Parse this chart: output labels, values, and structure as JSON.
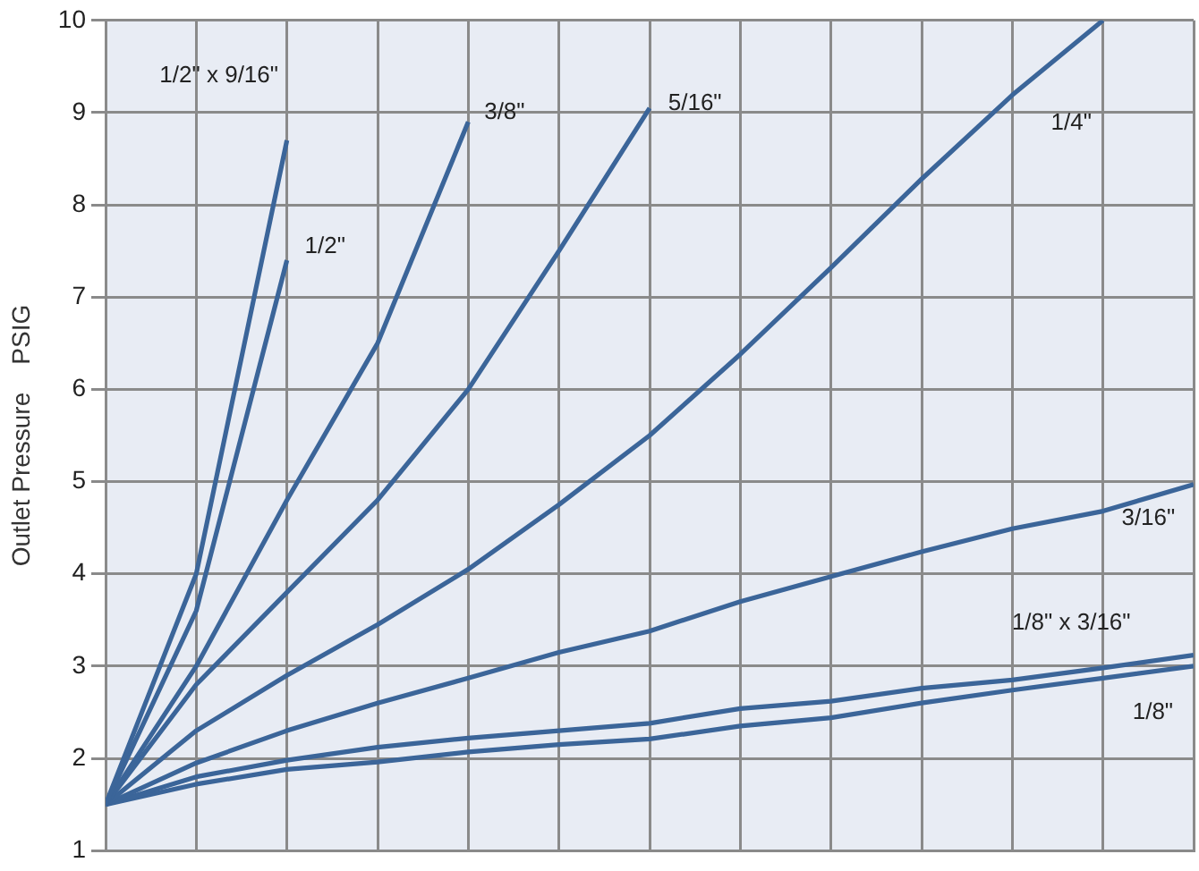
{
  "chart_data": {
    "type": "line",
    "ylabel": "Outlet Pressure    PSIG",
    "categories": [
      null,
      null,
      null,
      null,
      null,
      null,
      null,
      null,
      null,
      null,
      null,
      null,
      null
    ],
    "ylim": [
      1,
      10
    ],
    "yticks": [
      1,
      2,
      3,
      4,
      5,
      6,
      7,
      8,
      9,
      10
    ],
    "grid": true,
    "legend": false,
    "marker": "none",
    "line_style": "solid",
    "tick_labels": "y",
    "series": [
      {
        "name": "1/2\" x 9/16\"",
        "color": "#3b6599",
        "values": [
          1.5,
          4.0,
          8.7,
          null,
          null,
          null,
          null,
          null,
          null,
          null,
          null,
          null,
          null
        ]
      },
      {
        "name": "1/2\"",
        "color": "#3b6599",
        "values": [
          1.5,
          3.6,
          7.4,
          null,
          null,
          null,
          null,
          null,
          null,
          null,
          null,
          null,
          null
        ]
      },
      {
        "name": "3/8\"",
        "color": "#3b6599",
        "values": [
          1.5,
          3.0,
          4.8,
          6.5,
          8.9,
          null,
          null,
          null,
          null,
          null,
          null,
          null,
          null
        ]
      },
      {
        "name": "5/16\"",
        "color": "#3b6599",
        "values": [
          1.5,
          2.8,
          3.8,
          4.8,
          6.0,
          7.5,
          9.05,
          null,
          null,
          null,
          null,
          null,
          null
        ]
      },
      {
        "name": "1/4\"",
        "color": "#3b6599",
        "values": [
          1.5,
          2.3,
          2.9,
          3.45,
          4.05,
          4.75,
          5.5,
          6.38,
          7.32,
          8.28,
          9.19,
          10,
          null
        ]
      },
      {
        "name": "3/16\"",
        "color": "#3b6599",
        "values": [
          1.5,
          1.95,
          2.3,
          2.6,
          2.87,
          3.15,
          3.38,
          3.7,
          3.97,
          4.24,
          4.49,
          4.68,
          4.97
        ]
      },
      {
        "name": "1/8\" x 3/16\"",
        "color": "#3b6599",
        "values": [
          1.5,
          1.8,
          1.98,
          2.12,
          2.22,
          2.3,
          2.38,
          2.54,
          2.62,
          2.76,
          2.85,
          2.98,
          3.12
        ]
      },
      {
        "name": "1/8\"",
        "color": "#3b6599",
        "values": [
          1.5,
          1.72,
          1.88,
          1.96,
          2.07,
          2.15,
          2.21,
          2.35,
          2.44,
          2.6,
          2.74,
          2.87,
          3.0
        ]
      }
    ]
  }
}
